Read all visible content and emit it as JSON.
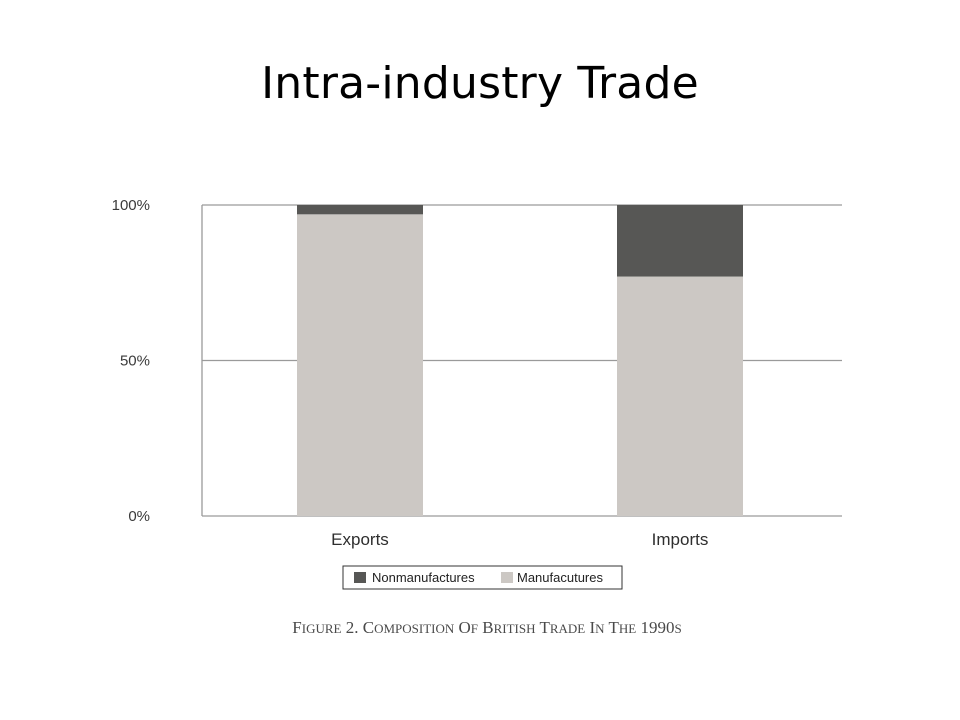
{
  "slide": {
    "title": "Intra-industry Trade"
  },
  "chart_data": {
    "type": "bar",
    "stacked": true,
    "categories": [
      "Exports",
      "Imports"
    ],
    "series": [
      {
        "name": "Manufacutures",
        "values": [
          97,
          77
        ],
        "color": "#ccc8c4"
      },
      {
        "name": "Nonmanufactures",
        "values": [
          3,
          23
        ],
        "color": "#575755"
      }
    ],
    "ylim": [
      0,
      100
    ],
    "yticks": [
      0,
      50,
      100
    ],
    "ytick_labels": [
      "0%",
      "50%",
      "100%"
    ],
    "grid": true,
    "legend_position": "bottom-center",
    "legend_order": [
      "Nonmanufactures",
      "Manufacutures"
    ],
    "caption": "Figure 2. Composition of British Trade in the 1990s"
  }
}
